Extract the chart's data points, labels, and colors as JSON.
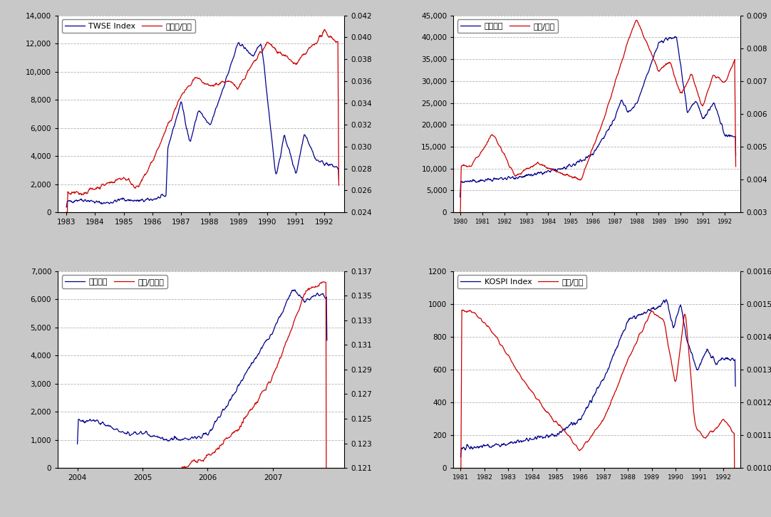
{
  "fig_bg": "#c8c8c8",
  "panel_bg": "#ffffff",
  "grid_color": "#aaaaaa",
  "line_blue": "#00008B",
  "line_red": "#CC0000",
  "panels": [
    {
      "legend1": "TWSE Index",
      "legend2": "新台币/美元",
      "xlim": [
        1982.7,
        1992.7
      ],
      "ylim_left": [
        0,
        14000
      ],
      "ylim_right": [
        0.024,
        0.042
      ],
      "yticks_left": [
        0,
        2000,
        4000,
        6000,
        8000,
        10000,
        12000,
        14000
      ],
      "yticks_right": [
        0.024,
        0.026,
        0.028,
        0.03,
        0.032,
        0.034,
        0.036,
        0.038,
        0.04,
        0.042
      ],
      "xticks": [
        1983,
        1984,
        1985,
        1986,
        1987,
        1988,
        1989,
        1990,
        1991,
        1992
      ]
    },
    {
      "legend1": "日经指数",
      "legend2": "日元/美元",
      "xlim": [
        1979.7,
        1992.7
      ],
      "ylim_left": [
        0,
        45000
      ],
      "ylim_right": [
        0.003,
        0.009
      ],
      "yticks_left": [
        0,
        5000,
        10000,
        15000,
        20000,
        25000,
        30000,
        35000,
        40000,
        45000
      ],
      "yticks_right": [
        0.003,
        0.004,
        0.005,
        0.006,
        0.007,
        0.008,
        0.009
      ],
      "xticks": [
        1980,
        1981,
        1982,
        1983,
        1984,
        1985,
        1986,
        1987,
        1988,
        1989,
        1990,
        1991,
        1992
      ]
    },
    {
      "legend1": "上证指数",
      "legend2": "美元/人民币",
      "xlim": [
        2003.7,
        2008.1
      ],
      "ylim_left": [
        0,
        7000
      ],
      "ylim_right": [
        0.121,
        0.137
      ],
      "yticks_left": [
        0,
        1000,
        2000,
        3000,
        4000,
        5000,
        6000,
        7000
      ],
      "yticks_right": [
        0.121,
        0.123,
        0.125,
        0.127,
        0.129,
        0.131,
        0.133,
        0.135,
        0.137
      ],
      "xticks": [
        2004,
        2005,
        2006,
        2007
      ]
    },
    {
      "legend1": "KOSPI Index",
      "legend2": "韩元/美元",
      "xlim": [
        1980.7,
        1992.7
      ],
      "ylim_left": [
        0,
        1200
      ],
      "ylim_right": [
        0.001,
        0.0016
      ],
      "yticks_left": [
        0,
        200,
        400,
        600,
        800,
        1000,
        1200
      ],
      "yticks_right": [
        0.001,
        0.0011,
        0.0012,
        0.0013,
        0.0014,
        0.0015,
        0.0016
      ],
      "xticks": [
        1981,
        1982,
        1983,
        1984,
        1985,
        1986,
        1987,
        1988,
        1989,
        1990,
        1991,
        1992
      ]
    }
  ]
}
